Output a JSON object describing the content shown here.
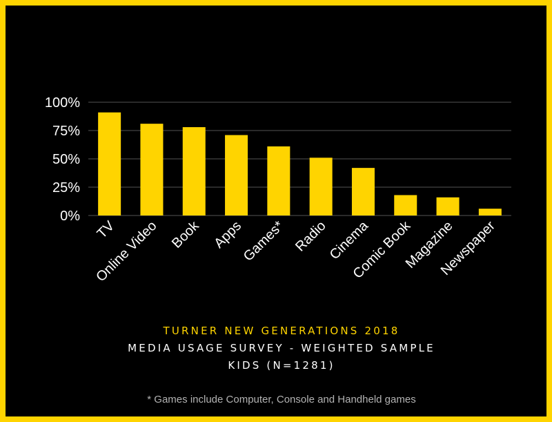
{
  "colors": {
    "background": "#000000",
    "border": "#ffd400",
    "bar": "#ffd400",
    "grid": "#555555",
    "text": "#ffffff",
    "note": "#b3b3b3"
  },
  "captions": {
    "line1": "TURNER NEW GENERATIONS 2018",
    "line2": "MEDIA USAGE SURVEY - WEIGHTED SAMPLE",
    "line3": "KIDS (N=1281)"
  },
  "footnote": "* Games include Computer, Console and Handheld games",
  "chart_data": {
    "type": "bar",
    "title": "",
    "xlabel": "",
    "ylabel": "",
    "categories": [
      "TV",
      "Online Video",
      "Book",
      "Apps",
      "Games*",
      "Radio",
      "Cinema",
      "Comic Book",
      "Magazine",
      "Newspaper"
    ],
    "values": [
      91,
      81,
      78,
      71,
      61,
      51,
      42,
      18,
      16,
      6
    ],
    "ylim": [
      0,
      100
    ],
    "yticks": [
      0,
      25,
      50,
      75,
      100
    ],
    "ytick_labels": [
      "0%",
      "25%",
      "50%",
      "75%",
      "100%"
    ],
    "grid": true,
    "legend": "none"
  }
}
